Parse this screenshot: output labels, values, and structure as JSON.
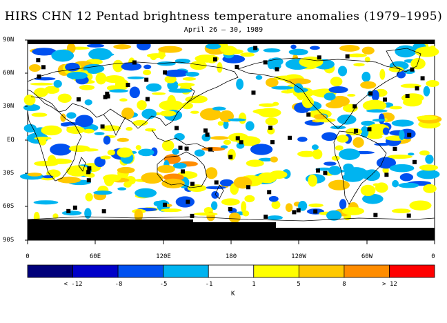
{
  "title": "HIRS CHN 12 Pentad brightness temperature anomalies (1979–1995)",
  "subtitle": "April 26 – 30, 1989",
  "lat_labels": [
    "90N",
    "60N",
    "30N",
    "EQ",
    "30S",
    "60S",
    "90S"
  ],
  "lon_labels": [
    "0",
    "60E",
    "120E",
    "180",
    "120W",
    "60W",
    "0"
  ],
  "colorbar": {
    "colors": [
      "#00007a",
      "#0000c8",
      "#0050f0",
      "#00b4f0",
      "#ffffff",
      "#ffff00",
      "#ffc800",
      "#ff8c00",
      "#ff0000"
    ],
    "labels": [
      "< -12",
      "-8",
      "-5",
      "-1",
      "1",
      "5",
      "8",
      "> 12"
    ],
    "unit": "K"
  },
  "colors": {
    "land_outline": "#000000",
    "missing": "#000000"
  }
}
